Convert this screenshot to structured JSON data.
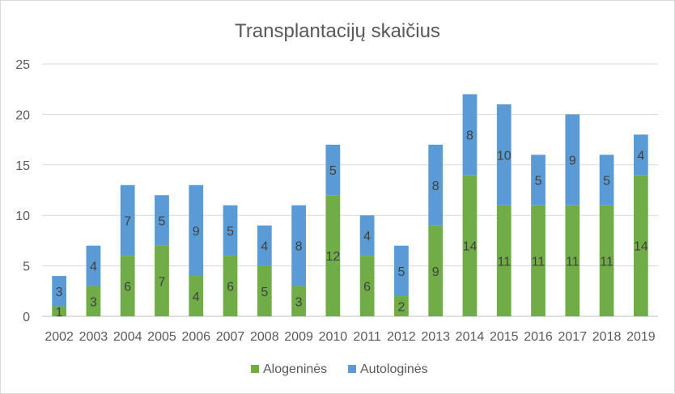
{
  "chart_data": {
    "type": "bar",
    "stacked": true,
    "title": "Transplantacijų skaičius",
    "categories": [
      "2002",
      "2003",
      "2004",
      "2005",
      "2006",
      "2007",
      "2008",
      "2009",
      "2010",
      "2011",
      "2012",
      "2013",
      "2014",
      "2015",
      "2016",
      "2017",
      "2018",
      "2019"
    ],
    "series": [
      {
        "name": "Alogeninės",
        "color": "#70ad47",
        "values": [
          1,
          3,
          6,
          7,
          4,
          6,
          5,
          3,
          12,
          6,
          2,
          9,
          14,
          11,
          11,
          11,
          11,
          14
        ]
      },
      {
        "name": "Autologinės",
        "color": "#5b9bd5",
        "values": [
          3,
          4,
          7,
          5,
          9,
          5,
          4,
          8,
          5,
          4,
          5,
          8,
          8,
          10,
          5,
          9,
          5,
          4
        ]
      }
    ],
    "ylim": [
      0,
      25
    ],
    "yticks": [
      0,
      5,
      10,
      15,
      20,
      25
    ],
    "grid": true,
    "legend": "bottom"
  }
}
